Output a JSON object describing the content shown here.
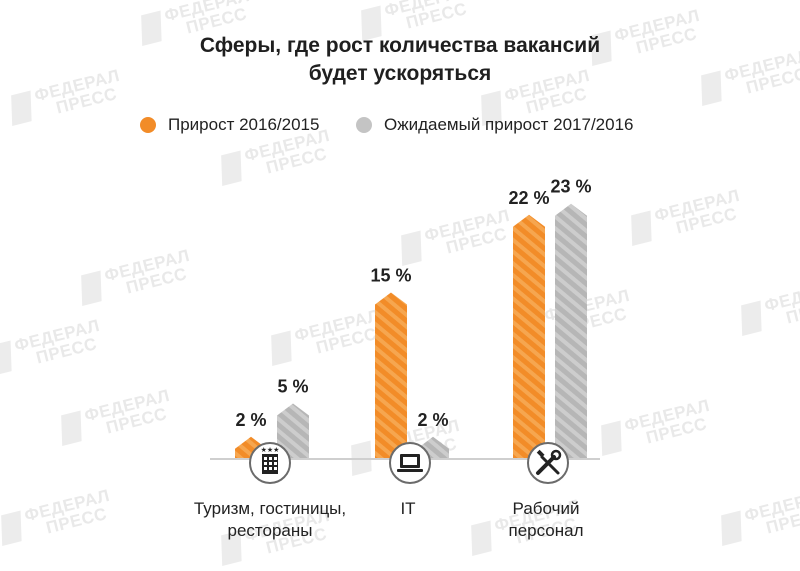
{
  "watermark": {
    "line1": "ФЕДЕРАЛ",
    "line2": "ПРЕСС"
  },
  "chart_data": {
    "type": "bar",
    "title": "Сферы, где рост количества вакансий будет ускоряться",
    "title_lines": [
      "Сферы, где рост количества вакансий",
      "будет ускоряться"
    ],
    "categories": [
      "Туризм, гостиницы, рестораны",
      "IT",
      "Рабочий персонал"
    ],
    "category_label_lines": [
      [
        "Туризм, гостиницы,",
        "рестораны"
      ],
      [
        "IT"
      ],
      [
        "Рабочий",
        "персонал"
      ]
    ],
    "category_icons": [
      "hotel-icon",
      "laptop-icon",
      "tools-icon"
    ],
    "series": [
      {
        "name": "Прирост 2016/2015",
        "values": [
          2,
          15,
          22
        ],
        "color": "#f28c28",
        "labels": [
          "2 %",
          "15 %",
          "22 %"
        ]
      },
      {
        "name": "Ожидаемый прирост 2017/2016",
        "values": [
          5,
          2,
          23
        ],
        "color": "#b9b9b9",
        "labels": [
          "5 %",
          "2 %",
          "23 %"
        ]
      }
    ],
    "legend_position": "top",
    "grid": false
  }
}
